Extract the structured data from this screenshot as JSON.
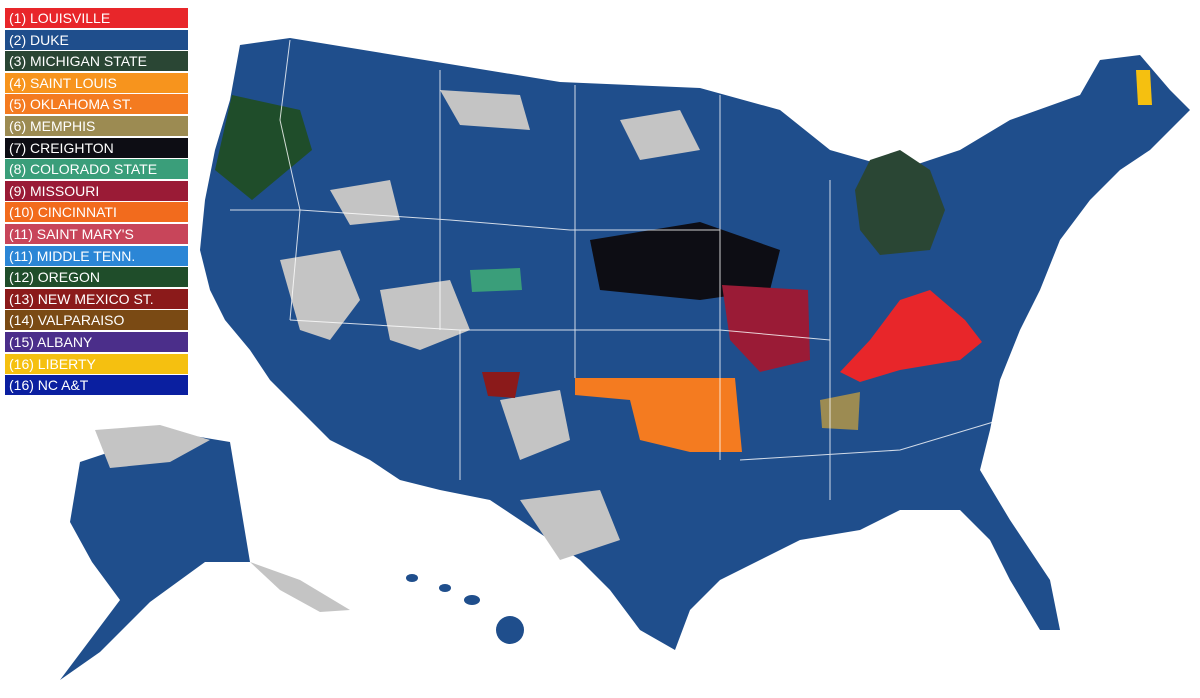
{
  "legend": [
    {
      "label": "(1) LOUISVILLE",
      "color": "#e8262a"
    },
    {
      "label": "(2) DUKE",
      "color": "#1f4e8c"
    },
    {
      "label": "(3) MICHIGAN STATE",
      "color": "#2a4634"
    },
    {
      "label": "(4) SAINT LOUIS",
      "color": "#f7941d"
    },
    {
      "label": "(5) OKLAHOMA ST.",
      "color": "#f47b20"
    },
    {
      "label": "(6) MEMPHIS",
      "color": "#9c8b52"
    },
    {
      "label": "(7) CREIGHTON",
      "color": "#0d0d14"
    },
    {
      "label": "(8) COLORADO STATE",
      "color": "#3a9e7a"
    },
    {
      "label": "(9) MISSOURI",
      "color": "#9a1b36"
    },
    {
      "label": "(10) CINCINNATI",
      "color": "#f26b1d"
    },
    {
      "label": "(11) SAINT MARY'S",
      "color": "#c8455a"
    },
    {
      "label": "(11) MIDDLE TENN.",
      "color": "#2b86d6"
    },
    {
      "label": "(12) OREGON",
      "color": "#1f4d2a"
    },
    {
      "label": "(13) NEW MEXICO ST.",
      "color": "#8b1a1a"
    },
    {
      "label": "(14) VALPARAISO",
      "color": "#7a4a14"
    },
    {
      "label": "(15) ALBANY",
      "color": "#4b2e8a"
    },
    {
      "label": "(16) LIBERTY",
      "color": "#f5c010"
    },
    {
      "label": "(16) NC A&T",
      "color": "#0a1fa0"
    }
  ]
}
